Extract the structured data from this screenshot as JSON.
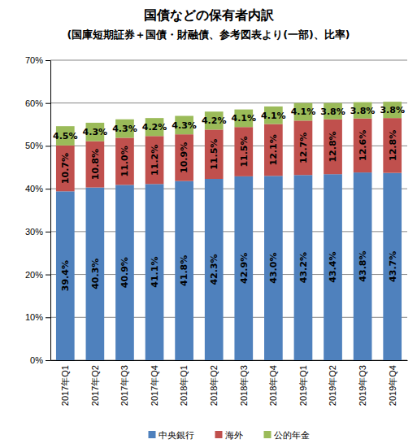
{
  "chart_data": {
    "type": "bar",
    "title": "国債などの保有者内訳",
    "subtitle": "(国庫短期証券＋国債・財融債、参考図表より(一部)、比率)",
    "categories": [
      "2017年Q1",
      "2017年Q2",
      "2017年Q3",
      "2017年Q4",
      "2018年Q1",
      "2018年Q2",
      "2018年Q3",
      "2018年Q4",
      "2019年Q1",
      "2019年Q2",
      "2019年Q3",
      "2019年Q4"
    ],
    "series": [
      {
        "name": "中央銀行",
        "color": "#4f81bd",
        "values": [
          39.4,
          40.3,
          40.9,
          41.1,
          41.8,
          42.3,
          42.9,
          43.0,
          43.2,
          43.4,
          43.8,
          43.7
        ],
        "value_labels": [
          "39.4%",
          "40.3%",
          "40.9%",
          "41.1%",
          "41.8%",
          "42.3%",
          "42.9%",
          "43.0%",
          "43.2%",
          "43.4%",
          "43.8%",
          "43.7%"
        ]
      },
      {
        "name": "海外",
        "color": "#c0504d",
        "values": [
          10.7,
          10.8,
          11.0,
          11.2,
          10.9,
          11.5,
          11.5,
          12.1,
          12.7,
          12.8,
          12.6,
          12.8
        ],
        "value_labels": [
          "10.7%",
          "10.8%",
          "11.0%",
          "11.2%",
          "10.9%",
          "11.5%",
          "11.5%",
          "12.1%",
          "12.7%",
          "12.8%",
          "12.6%",
          "12.8%"
        ]
      },
      {
        "name": "公的年金",
        "color": "#9bbb59",
        "values": [
          4.5,
          4.3,
          4.3,
          4.2,
          4.3,
          4.2,
          4.1,
          4.1,
          4.1,
          3.8,
          3.8,
          3.8
        ],
        "value_labels": [
          "4.5%",
          "4.3%",
          "4.3%",
          "4.2%",
          "4.3%",
          "4.2%",
          "4.1%",
          "4.1%",
          "4.1%",
          "3.8%",
          "3.8%",
          "3.8%"
        ]
      }
    ],
    "ylim": [
      0,
      70
    ],
    "yticks": [
      {
        "value": 0,
        "label": "0%"
      },
      {
        "value": 10,
        "label": "10%"
      },
      {
        "value": 20,
        "label": "20%"
      },
      {
        "value": 30,
        "label": "30%"
      },
      {
        "value": 40,
        "label": "40%"
      },
      {
        "value": 50,
        "label": "50%"
      },
      {
        "value": 60,
        "label": "60%"
      },
      {
        "value": 70,
        "label": "70%"
      }
    ],
    "stacked": true,
    "grid": true,
    "data_labels": true,
    "legend": "bottom"
  }
}
